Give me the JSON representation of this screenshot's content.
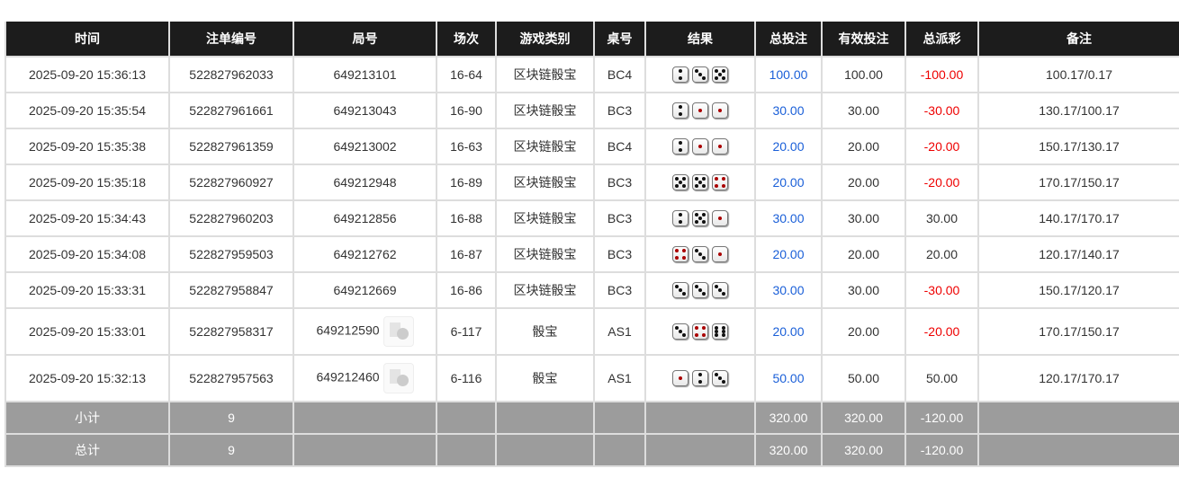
{
  "headers": [
    "时间",
    "注单编号",
    "局号",
    "场次",
    "游戏类别",
    "桌号",
    "结果",
    "总投注",
    "有效投注",
    "总派彩",
    "备注"
  ],
  "rows": [
    {
      "time": "2025-09-20 15:36:13",
      "bet_no": "522827962033",
      "round": "649213101",
      "session": "16-64",
      "game": "区块链骰宝",
      "table": "BC4",
      "dice": [
        2,
        3,
        5
      ],
      "bet": "100.00",
      "valid": "100.00",
      "payout": "-100.00",
      "note": "100.17/0.17",
      "video": false
    },
    {
      "time": "2025-09-20 15:35:54",
      "bet_no": "522827961661",
      "round": "649213043",
      "session": "16-90",
      "game": "区块链骰宝",
      "table": "BC3",
      "dice": [
        2,
        1,
        1
      ],
      "bet": "30.00",
      "valid": "30.00",
      "payout": "-30.00",
      "note": "130.17/100.17",
      "video": false
    },
    {
      "time": "2025-09-20 15:35:38",
      "bet_no": "522827961359",
      "round": "649213002",
      "session": "16-63",
      "game": "区块链骰宝",
      "table": "BC4",
      "dice": [
        2,
        1,
        1
      ],
      "bet": "20.00",
      "valid": "20.00",
      "payout": "-20.00",
      "note": "150.17/130.17",
      "video": false
    },
    {
      "time": "2025-09-20 15:35:18",
      "bet_no": "522827960927",
      "round": "649212948",
      "session": "16-89",
      "game": "区块链骰宝",
      "table": "BC3",
      "dice": [
        5,
        5,
        4
      ],
      "bet": "20.00",
      "valid": "20.00",
      "payout": "-20.00",
      "note": "170.17/150.17",
      "video": false
    },
    {
      "time": "2025-09-20 15:34:43",
      "bet_no": "522827960203",
      "round": "649212856",
      "session": "16-88",
      "game": "区块链骰宝",
      "table": "BC3",
      "dice": [
        2,
        5,
        1
      ],
      "bet": "30.00",
      "valid": "30.00",
      "payout": "30.00",
      "note": "140.17/170.17",
      "video": false
    },
    {
      "time": "2025-09-20 15:34:08",
      "bet_no": "522827959503",
      "round": "649212762",
      "session": "16-87",
      "game": "区块链骰宝",
      "table": "BC3",
      "dice": [
        4,
        3,
        1
      ],
      "bet": "20.00",
      "valid": "20.00",
      "payout": "20.00",
      "note": "120.17/140.17",
      "video": false
    },
    {
      "time": "2025-09-20 15:33:31",
      "bet_no": "522827958847",
      "round": "649212669",
      "session": "16-86",
      "game": "区块链骰宝",
      "table": "BC3",
      "dice": [
        3,
        3,
        3
      ],
      "bet": "30.00",
      "valid": "30.00",
      "payout": "-30.00",
      "note": "150.17/120.17",
      "video": false
    },
    {
      "time": "2025-09-20 15:33:01",
      "bet_no": "522827958317",
      "round": "649212590",
      "session": "6-117",
      "game": "骰宝",
      "table": "AS1",
      "dice": [
        3,
        4,
        6
      ],
      "bet": "20.00",
      "valid": "20.00",
      "payout": "-20.00",
      "note": "170.17/150.17",
      "video": true
    },
    {
      "time": "2025-09-20 15:32:13",
      "bet_no": "522827957563",
      "round": "649212460",
      "session": "6-116",
      "game": "骰宝",
      "table": "AS1",
      "dice": [
        1,
        2,
        3
      ],
      "bet": "50.00",
      "valid": "50.00",
      "payout": "50.00",
      "note": "120.17/170.17",
      "video": true
    }
  ],
  "subtotal": {
    "label": "小计",
    "count": "9",
    "bet": "320.00",
    "valid": "320.00",
    "payout": "-120.00"
  },
  "total": {
    "label": "总计",
    "count": "9",
    "bet": "320.00",
    "valid": "320.00",
    "payout": "-120.00"
  },
  "colors": {
    "header_bg": "#1c1c1c",
    "bet_blue": "#1a5fd8",
    "negative_red": "#e00000",
    "footer_bg": "#9c9c9c"
  }
}
